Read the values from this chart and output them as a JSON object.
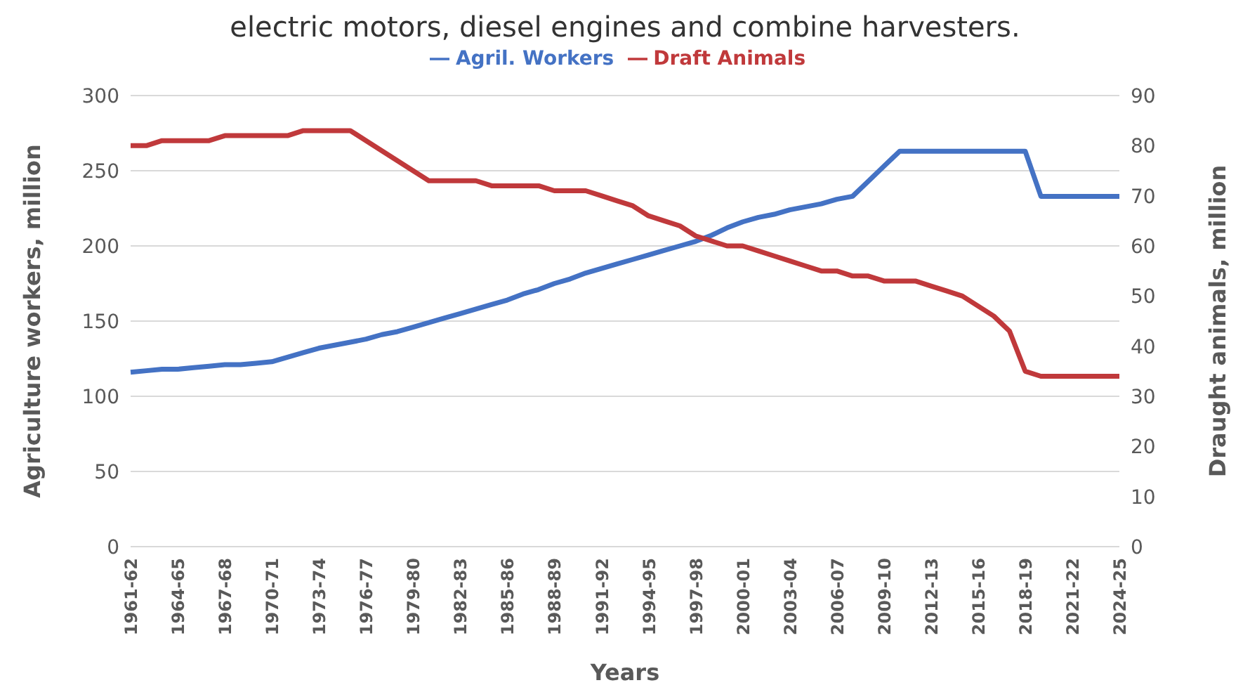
{
  "chart_data": {
    "type": "line",
    "title": "electric motors, diesel engines and combine harvesters.",
    "xlabel": "Years",
    "ylabel": "Agriculture workers, million",
    "y2label": "Draught animals, million",
    "categories": [
      "1961-62",
      null,
      null,
      "1964-65",
      null,
      null,
      "1967-68",
      null,
      null,
      "1970-71",
      null,
      null,
      "1973-74",
      null,
      null,
      "1976-77",
      null,
      null,
      "1979-80",
      null,
      null,
      "1982-83",
      null,
      null,
      "1985-86",
      null,
      null,
      "1988-89",
      null,
      null,
      "1991-92",
      null,
      null,
      "1994-95",
      null,
      null,
      "1997-98",
      null,
      null,
      "2000-01",
      null,
      null,
      "2003-04",
      null,
      null,
      "2006-07",
      null,
      null,
      "2009-10",
      null,
      null,
      "2012-13",
      null,
      null,
      "2015-16",
      null,
      null,
      "2018-19",
      null,
      null,
      "2021-22",
      null,
      null,
      "2024-25"
    ],
    "series": [
      {
        "name": "Agril. Workers",
        "color": "#4472c4",
        "values": [
          116,
          117,
          118,
          118,
          119,
          120,
          121,
          121,
          122,
          123,
          126,
          129,
          132,
          134,
          136,
          138,
          141,
          143,
          146,
          149,
          152,
          155,
          158,
          161,
          164,
          168,
          171,
          175,
          178,
          182,
          185,
          188,
          191,
          194,
          197,
          200,
          203,
          207,
          212,
          216,
          219,
          221,
          224,
          226,
          228,
          231,
          233,
          243,
          253,
          263,
          263,
          263,
          263,
          263,
          263,
          263,
          263,
          263,
          233,
          233,
          233,
          233,
          233,
          233
        ]
      },
      {
        "name": "Draft Animals",
        "color": "#c0393b",
        "axis": "y2",
        "values": [
          80,
          80,
          81,
          81,
          81,
          81,
          82,
          82,
          82,
          82,
          82,
          83,
          83,
          83,
          83,
          81,
          79,
          77,
          75,
          73,
          73,
          73,
          73,
          72,
          72,
          72,
          72,
          71,
          71,
          71,
          70,
          69,
          68,
          66,
          65,
          64,
          62,
          61,
          60,
          60,
          59,
          58,
          57,
          56,
          55,
          55,
          54,
          54,
          53,
          53,
          53,
          52,
          51,
          50,
          48,
          46,
          43,
          35,
          34,
          34,
          34,
          34,
          34,
          34
        ]
      }
    ],
    "ylim": [
      0,
      300
    ],
    "yticks": [
      0,
      50,
      100,
      150,
      200,
      250,
      300
    ],
    "y2lim": [
      0,
      90
    ],
    "y2ticks": [
      0,
      10,
      20,
      30,
      40,
      50,
      60,
      70,
      80,
      90
    ],
    "grid": "y",
    "legend": "top"
  }
}
